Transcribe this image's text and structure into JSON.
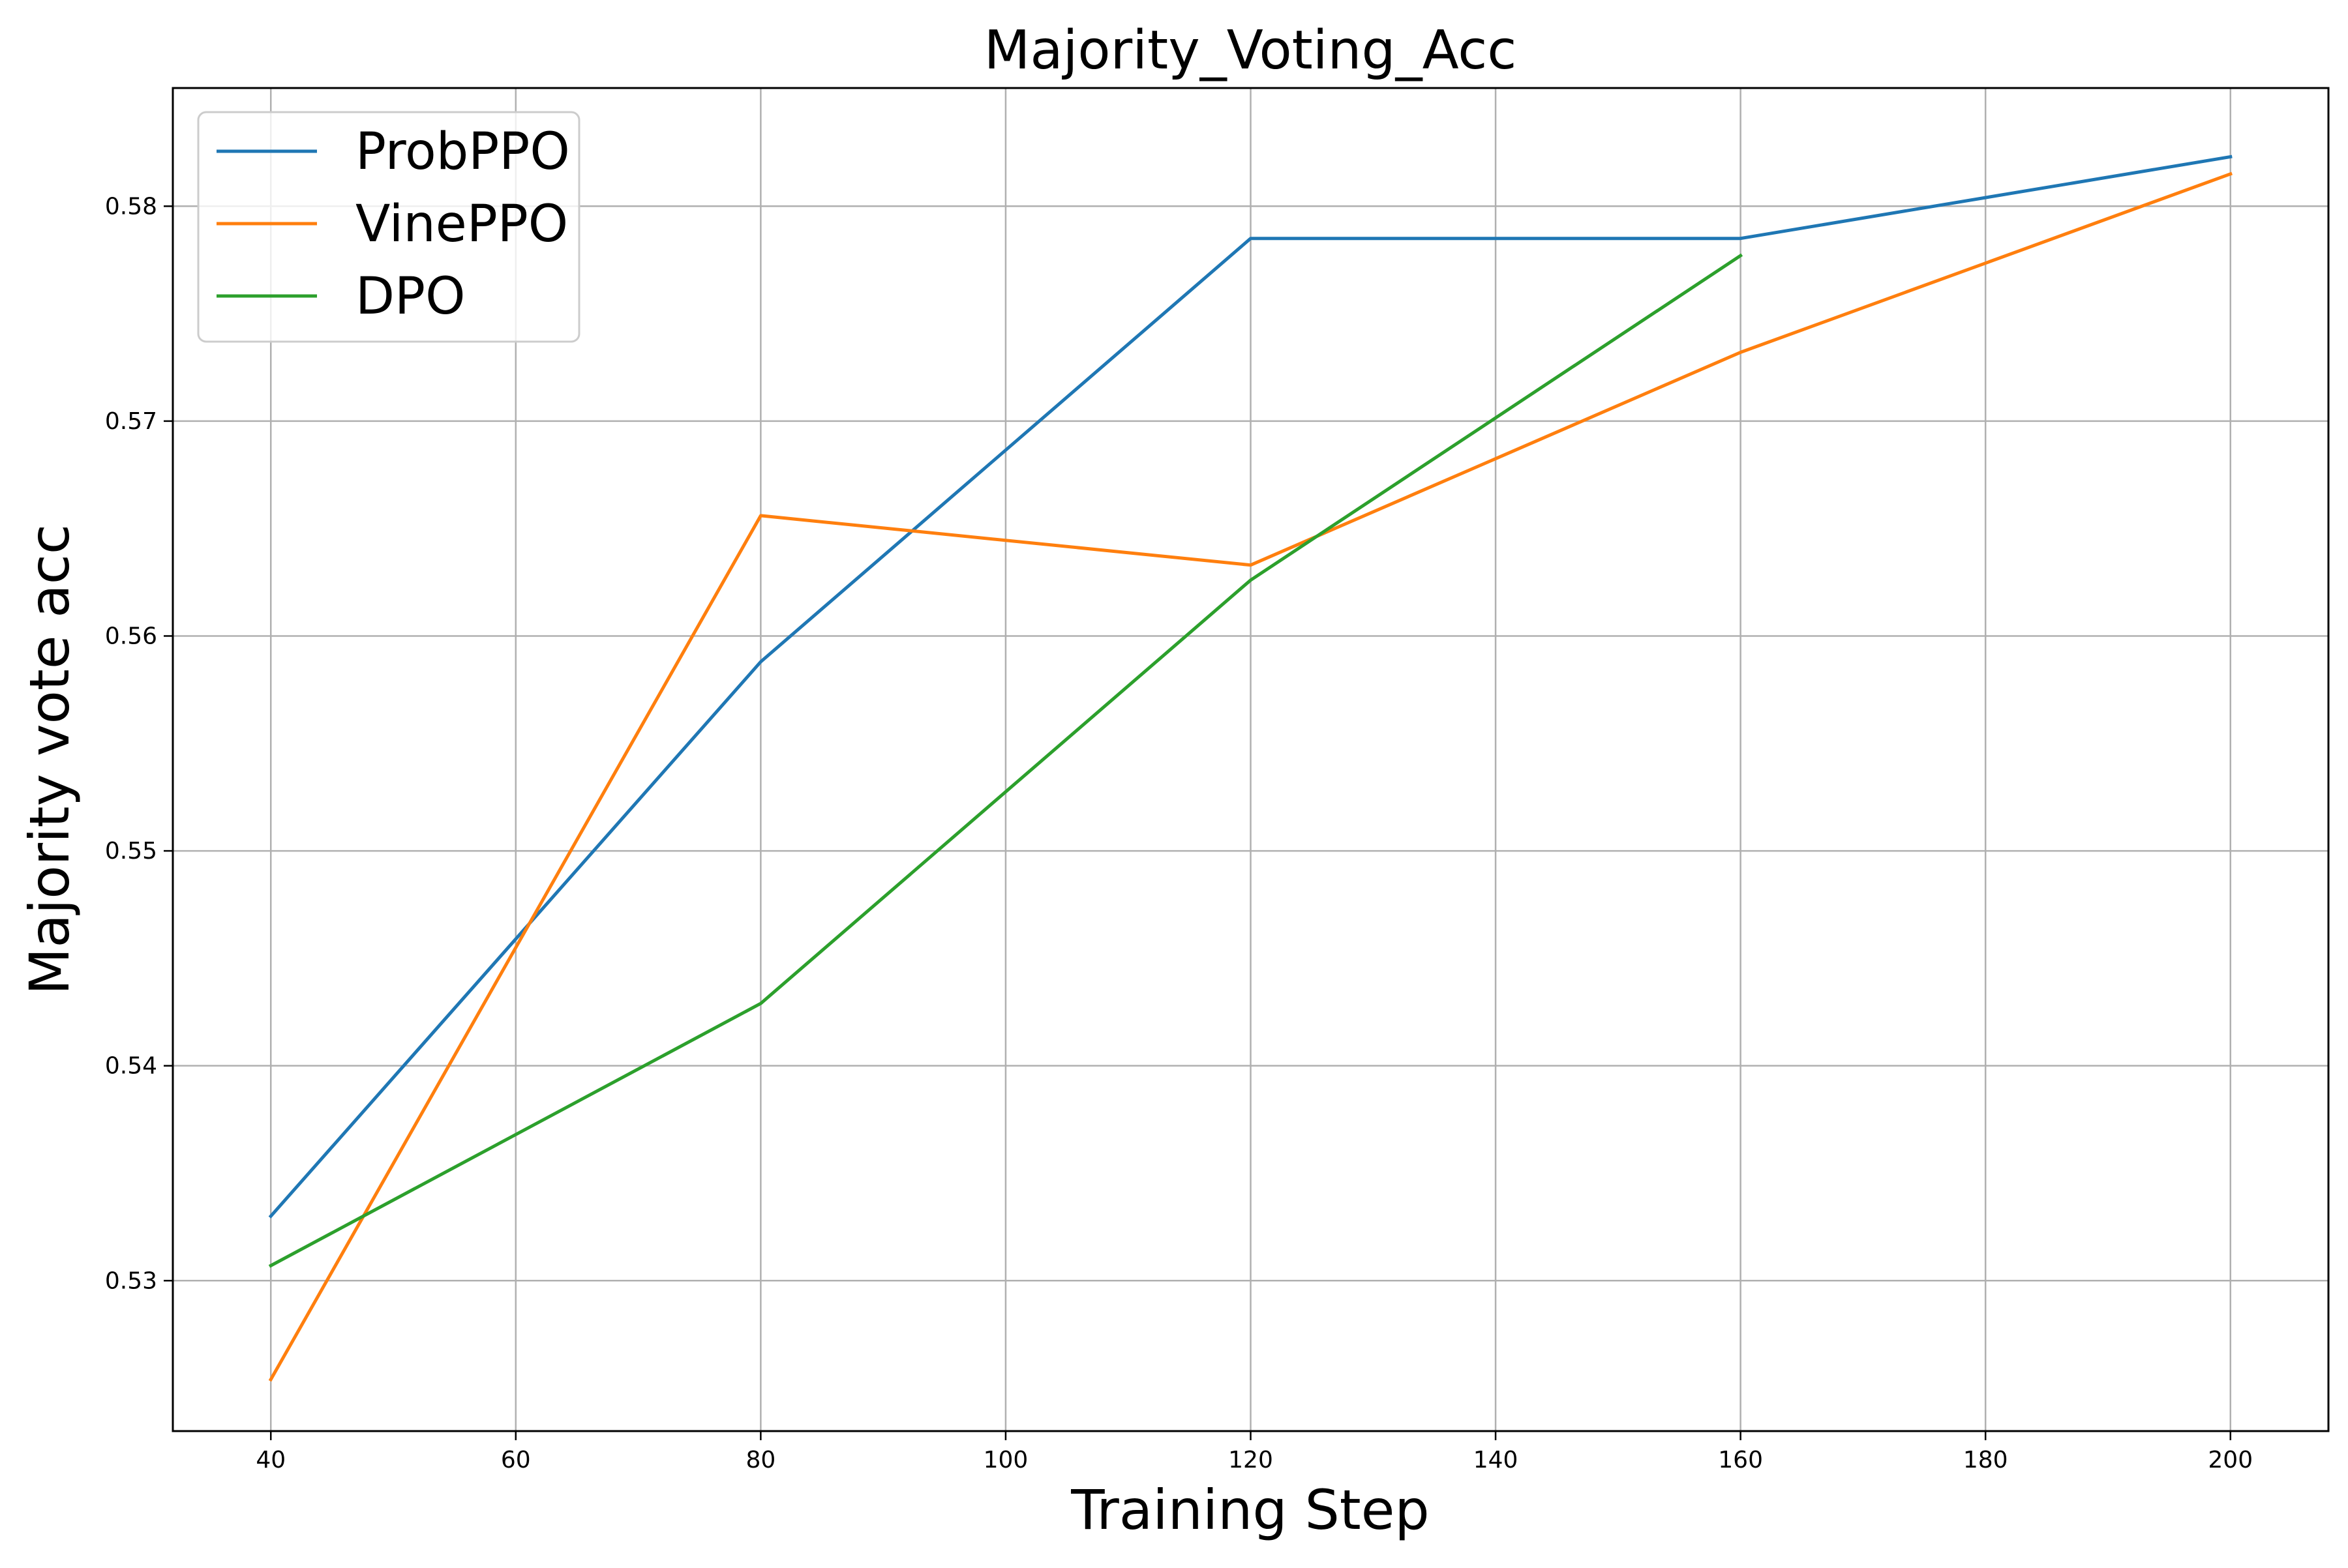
{
  "chart_data": {
    "type": "line",
    "title": "Majority_Voting_Acc",
    "xlabel": "Training Step",
    "ylabel": "Majority vote acc",
    "xlim": [
      32,
      208
    ],
    "ylim": [
      0.523,
      0.5855
    ],
    "xticks": [
      40,
      60,
      80,
      100,
      120,
      140,
      160,
      180,
      200
    ],
    "yticks": [
      0.53,
      0.54,
      0.55,
      0.56,
      0.57,
      0.58
    ],
    "xtick_labels": [
      "40",
      "60",
      "80",
      "100",
      "120",
      "140",
      "160",
      "180",
      "200"
    ],
    "ytick_labels": [
      "0.53",
      "0.54",
      "0.55",
      "0.56",
      "0.57",
      "0.58"
    ],
    "grid": true,
    "legend_position": "top-left",
    "series": [
      {
        "name": "ProbPPO",
        "color": "#1f77b4",
        "x": [
          40,
          80,
          120,
          160,
          200
        ],
        "y": [
          0.533,
          0.5588,
          0.5785,
          0.5785,
          0.5823
        ]
      },
      {
        "name": "VinePPO",
        "color": "#ff7f0e",
        "x": [
          40,
          80,
          120,
          160,
          200
        ],
        "y": [
          0.5254,
          0.5656,
          0.5633,
          0.5732,
          0.5815
        ]
      },
      {
        "name": "DPO",
        "color": "#2ca02c",
        "x": [
          40,
          80,
          120,
          160
        ],
        "y": [
          0.5307,
          0.5429,
          0.5626,
          0.5777
        ]
      }
    ]
  }
}
